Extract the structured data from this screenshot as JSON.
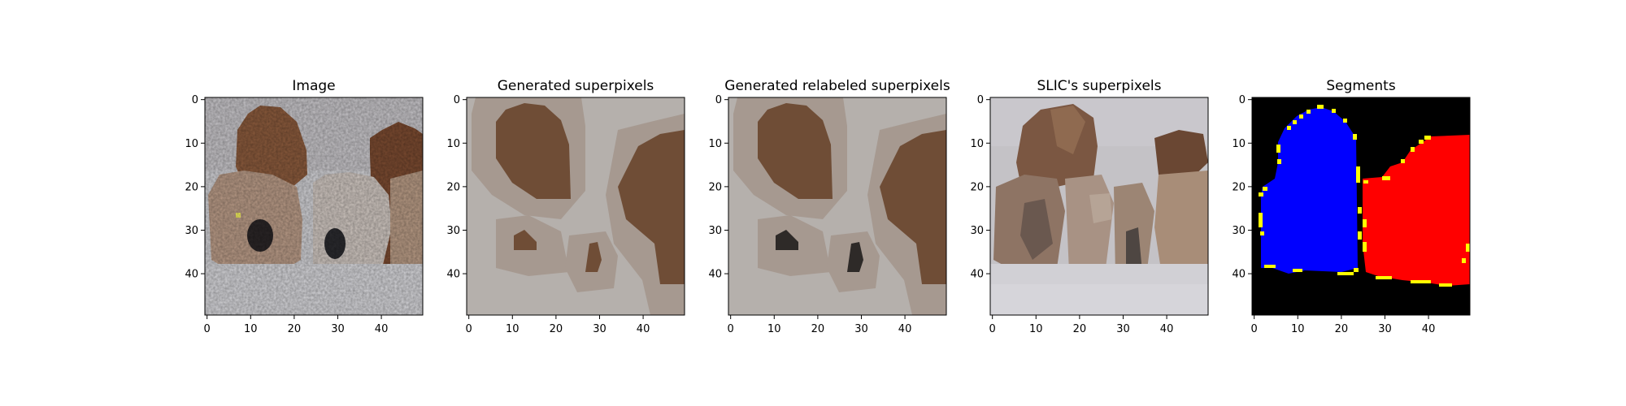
{
  "figure": {
    "panels": [
      {
        "id": "image",
        "title": "Image"
      },
      {
        "id": "generated-superpixels",
        "title": "Generated superpixels"
      },
      {
        "id": "generated-relabeled-superpixels",
        "title": "Generated relabeled superpixels"
      },
      {
        "id": "slic-superpixels",
        "title": "SLIC's superpixels"
      },
      {
        "id": "segments",
        "title": "Segments"
      }
    ],
    "x_ticks": [
      "0",
      "10",
      "20",
      "30",
      "40"
    ],
    "y_ticks": [
      "0",
      "10",
      "20",
      "30",
      "40"
    ],
    "pixel_grid": 50
  },
  "colors": {
    "background_gray": "#b2aeab",
    "light_gray": "#c2bfbc",
    "brown": "#6e4c36",
    "dark": "#2e2a28",
    "white_gray": "#d2d0d2",
    "segment_blue": "#0000ff",
    "segment_red": "#ff0000",
    "segment_yellow": "#ffff00",
    "segment_black": "#000000"
  }
}
